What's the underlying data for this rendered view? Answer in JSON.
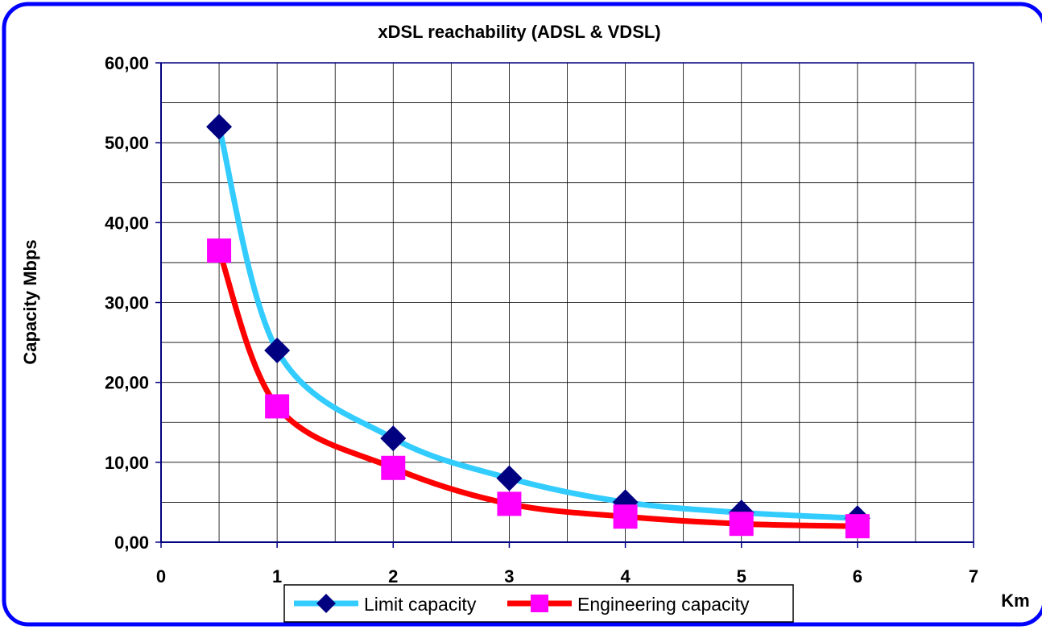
{
  "chart_data": {
    "type": "line",
    "title": "xDSL reachability (ADSL & VDSL)",
    "xlabel": "Km",
    "ylabel": "Capacity Mbps",
    "xlim": [
      0,
      7
    ],
    "ylim": [
      0,
      60
    ],
    "x_ticks": [
      "0",
      "1",
      "2",
      "3",
      "4",
      "5",
      "6",
      "7"
    ],
    "y_ticks": [
      "0,00",
      "10,00",
      "20,00",
      "30,00",
      "40,00",
      "50,00",
      "60,00"
    ],
    "grid": true,
    "legend_position": "bottom",
    "x": [
      0.5,
      1,
      2,
      3,
      4,
      5,
      6
    ],
    "series": [
      {
        "name": "Limit capacity",
        "values": [
          52.0,
          24.0,
          13.0,
          8.0,
          5.0,
          3.7,
          3.0
        ],
        "line_color": "#33ccff",
        "marker": "diamond",
        "marker_color": "#000080"
      },
      {
        "name": "Engineering capacity",
        "values": [
          36.5,
          17.0,
          9.3,
          4.8,
          3.2,
          2.3,
          2.0
        ],
        "line_color": "#ff0000",
        "marker": "square",
        "marker_color": "#ff00ff"
      }
    ],
    "frame_color": "#0000ff"
  }
}
